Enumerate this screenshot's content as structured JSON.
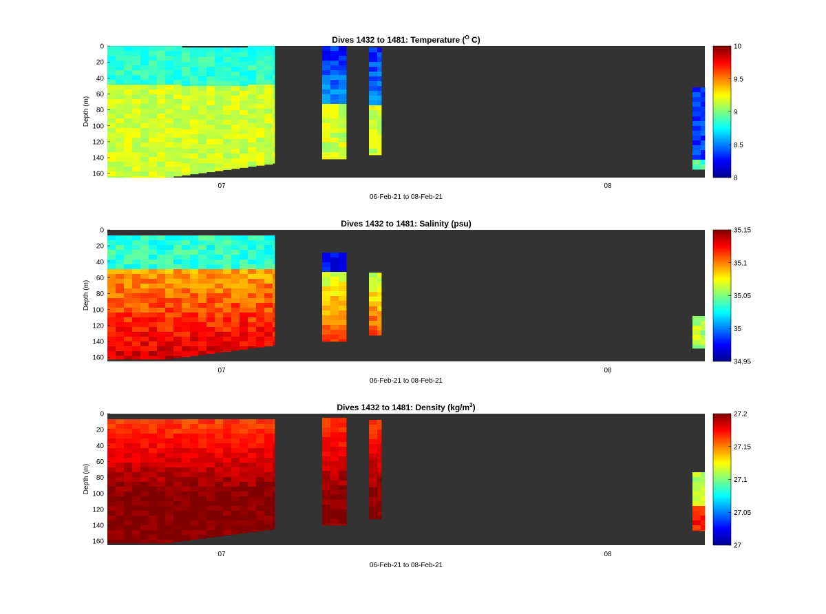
{
  "figure": {
    "xlabel": "06-Feb-21 to 08-Feb-21",
    "ylabel": "Depth (m)",
    "x_ticks": [
      "07",
      "08"
    ],
    "y_ticks": [
      "0",
      "20",
      "40",
      "60",
      "80",
      "100",
      "120",
      "140",
      "160"
    ],
    "background_color": "#333333"
  },
  "chart_data": [
    {
      "type": "heatmap",
      "title_main": "Dives 1432 to 1481: Temperature (",
      "title_sup": "O",
      "title_end": " C)",
      "ylabel": "Depth (m)",
      "xlabel": "06-Feb-21 to 08-Feb-21",
      "ylim": [
        0,
        165
      ],
      "colorbar": {
        "min": 8,
        "max": 10,
        "ticks": [
          "10",
          "9.5",
          "9",
          "8.5",
          "8"
        ]
      },
      "colormap": "jet"
    },
    {
      "type": "heatmap",
      "title_main": "Dives 1432 to 1481: Salinity (psu)",
      "title_sup": "",
      "title_end": "",
      "ylabel": "Depth (m)",
      "xlabel": "06-Feb-21 to 08-Feb-21",
      "ylim": [
        0,
        165
      ],
      "colorbar": {
        "min": 34.95,
        "max": 35.15,
        "ticks": [
          "35.15",
          "35.1",
          "35.05",
          "35",
          "34.95"
        ]
      },
      "colormap": "jet"
    },
    {
      "type": "heatmap",
      "title_main": "Dives 1432 to 1481: Density (kg/m",
      "title_sup": "3",
      "title_end": ")",
      "ylabel": "Depth (m)",
      "xlabel": "06-Feb-21 to 08-Feb-21",
      "ylim": [
        0,
        165
      ],
      "colorbar": {
        "min": 27,
        "max": 27.2,
        "ticks": [
          "27.2",
          "27.15",
          "27.1",
          "27.05",
          "27"
        ]
      },
      "colormap": "jet"
    }
  ]
}
